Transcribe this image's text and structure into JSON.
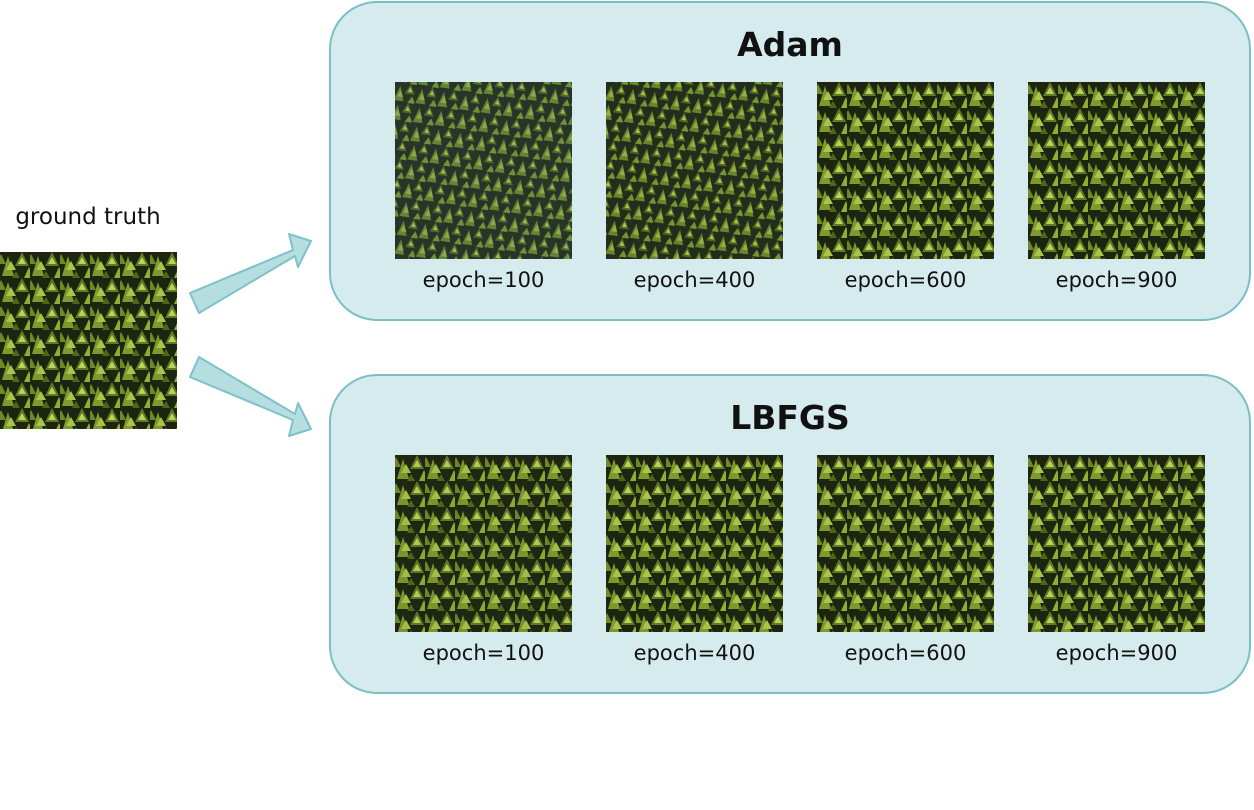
{
  "ground_truth": {
    "label": "ground truth"
  },
  "panels": [
    {
      "title": "Adam",
      "items": [
        {
          "caption": "epoch=100"
        },
        {
          "caption": "epoch=400"
        },
        {
          "caption": "epoch=600"
        },
        {
          "caption": "epoch=900"
        }
      ]
    },
    {
      "title": "LBFGS",
      "items": [
        {
          "caption": "epoch=100"
        },
        {
          "caption": "epoch=400"
        },
        {
          "caption": "epoch=600"
        },
        {
          "caption": "epoch=900"
        }
      ]
    }
  ],
  "colors": {
    "panel_fill": "#d6ebed",
    "panel_border": "#79c0c4",
    "arrow_fill": "#b6dde0",
    "arrow_stroke": "#7cc3c7"
  },
  "image_content": "ivy-leaf-texture"
}
